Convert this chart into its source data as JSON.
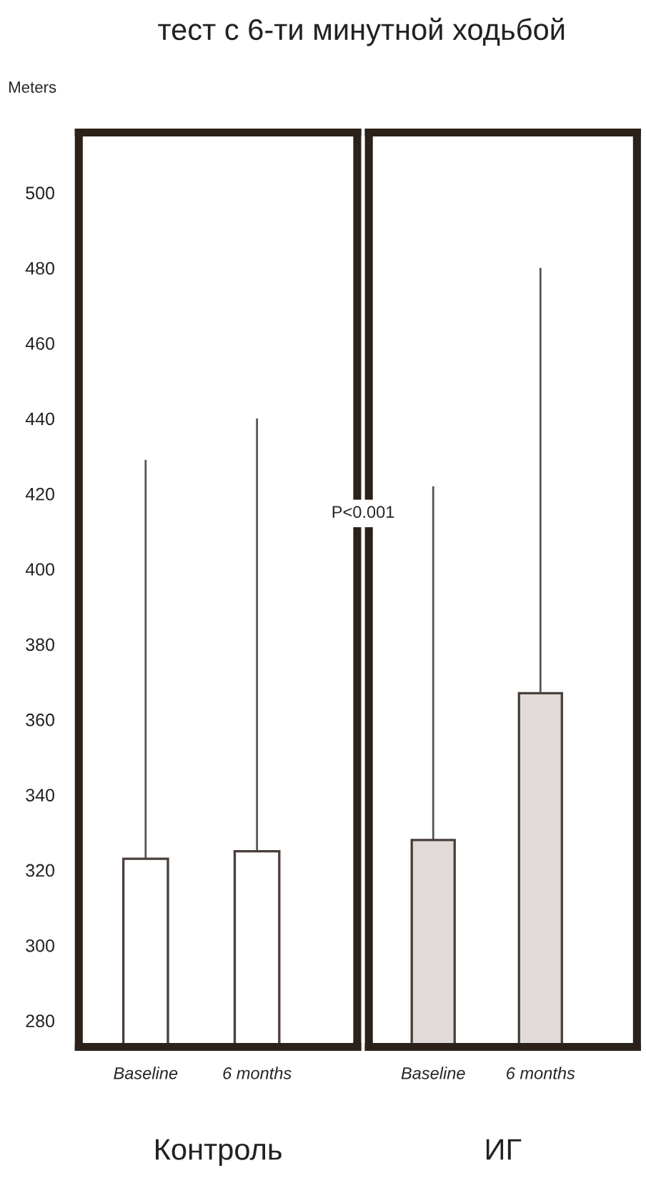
{
  "chart_data": [
    {
      "type": "bar",
      "title": "тест с 6-ти минутной ходьбой",
      "ylabel": "Meters",
      "xlabel": "Контроль",
      "categories": [
        "Baseline",
        "6 months"
      ],
      "series": [
        {
          "color": "#ffffff",
          "values": [
            323,
            325
          ],
          "errors": [
            [
              323,
              429
            ],
            [
              325,
              440
            ]
          ]
        }
      ],
      "ylim": [
        273,
        516
      ],
      "yticks": [
        280,
        300,
        320,
        340,
        360,
        380,
        400,
        420,
        440,
        460,
        480,
        500
      ],
      "grid": false,
      "legend": false
    },
    {
      "type": "bar",
      "xlabel": "ИГ",
      "annotations": [
        "P<0.001"
      ],
      "categories": [
        "Baseline",
        "6 months"
      ],
      "series": [
        {
          "color": "#e0dbd8",
          "values": [
            328,
            367
          ],
          "errors": [
            [
              328,
              422
            ],
            [
              367,
              480
            ]
          ]
        }
      ],
      "ylim": [
        273,
        516
      ],
      "yticks": [
        280,
        300,
        320,
        340,
        360,
        380,
        400,
        420,
        440,
        460,
        480,
        500
      ],
      "tick_labels": "x",
      "grid": false,
      "legend": false
    }
  ]
}
